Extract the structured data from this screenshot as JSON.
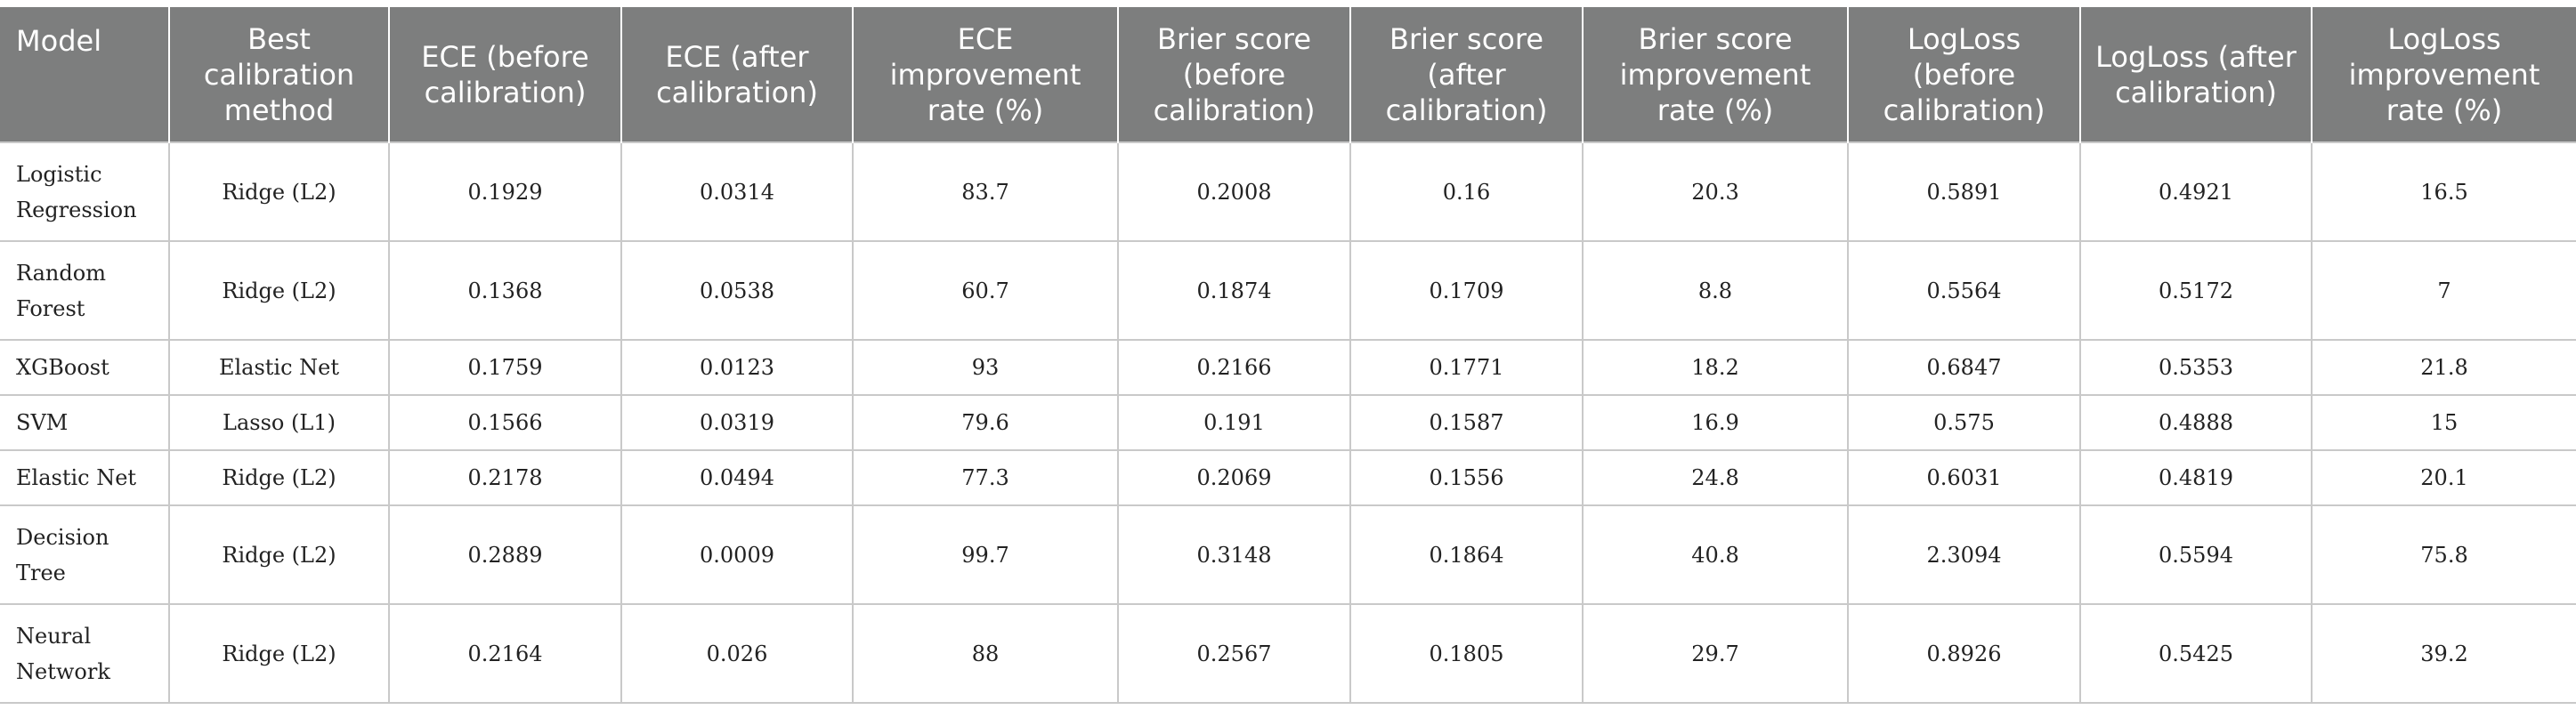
{
  "table": {
    "headers": [
      "Model",
      "Best calibration method",
      "ECE (before calibration)",
      "ECE (after calibration)",
      "ECE improvement rate (%)",
      "Brier score (before calibration)",
      "Brier score (after calibration)",
      "Brier score improvement rate (%)",
      "LogLoss (before calibration)",
      "LogLoss (after calibration)",
      "LogLoss improvement rate (%)"
    ],
    "rows": [
      [
        "Logistic Regression",
        "Ridge (L2)",
        "0.1929",
        "0.0314",
        "83.7",
        "0.2008",
        "0.16",
        "20.3",
        "0.5891",
        "0.4921",
        "16.5"
      ],
      [
        "Random Forest",
        "Ridge (L2)",
        "0.1368",
        "0.0538",
        "60.7",
        "0.1874",
        "0.1709",
        "8.8",
        "0.5564",
        "0.5172",
        "7"
      ],
      [
        "XGBoost",
        "Elastic Net",
        "0.1759",
        "0.0123",
        "93",
        "0.2166",
        "0.1771",
        "18.2",
        "0.6847",
        "0.5353",
        "21.8"
      ],
      [
        "SVM",
        "Lasso (L1)",
        "0.1566",
        "0.0319",
        "79.6",
        "0.191",
        "0.1587",
        "16.9",
        "0.575",
        "0.4888",
        "15"
      ],
      [
        "Elastic Net",
        "Ridge (L2)",
        "0.2178",
        "0.0494",
        "77.3",
        "0.2069",
        "0.1556",
        "24.8",
        "0.6031",
        "0.4819",
        "20.1"
      ],
      [
        "Decision Tree",
        "Ridge (L2)",
        "0.2889",
        "0.0009",
        "99.7",
        "0.3148",
        "0.1864",
        "40.8",
        "2.3094",
        "0.5594",
        "75.8"
      ],
      [
        "Neural Network",
        "Ridge (L2)",
        "0.2164",
        "0.026",
        "88",
        "0.2567",
        "0.1805",
        "29.7",
        "0.8926",
        "0.5425",
        "39.2"
      ]
    ]
  }
}
